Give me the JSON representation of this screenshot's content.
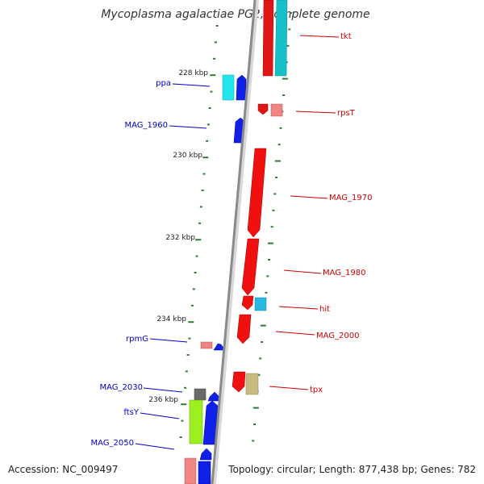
{
  "title": "Mycoplasma agalactiae PG2, complete genome",
  "footer": {
    "accession": "Accession: NC_009497",
    "summary": "Topology: circular; Length: 877,438 bp; Genes: 782"
  },
  "colors": {
    "forward_label": "#0000cc",
    "reverse_label": "#cc0000",
    "tick": "#2e7d32",
    "backbone": "#8a8a8a"
  },
  "scale": {
    "labels": [
      {
        "kbp": 228,
        "text": "228 kbp"
      },
      {
        "kbp": 230,
        "text": "230 kbp"
      },
      {
        "kbp": 232,
        "text": "232 kbp"
      },
      {
        "kbp": 234,
        "text": "234 kbp"
      },
      {
        "kbp": 236,
        "text": "236 kbp"
      }
    ]
  },
  "genes": [
    {
      "name": "tkt",
      "strand": "reverse"
    },
    {
      "name": "ppa",
      "strand": "forward"
    },
    {
      "name": "rpsT",
      "strand": "reverse"
    },
    {
      "name": "MAG_1960",
      "strand": "forward"
    },
    {
      "name": "MAG_1970",
      "strand": "reverse"
    },
    {
      "name": "MAG_1980",
      "strand": "reverse"
    },
    {
      "name": "hit",
      "strand": "reverse"
    },
    {
      "name": "rpmG",
      "strand": "forward"
    },
    {
      "name": "MAG_2000",
      "strand": "reverse"
    },
    {
      "name": "tpx",
      "strand": "reverse"
    },
    {
      "name": "MAG_2030",
      "strand": "forward"
    },
    {
      "name": "ftsY",
      "strand": "forward"
    },
    {
      "name": "MAG_2050",
      "strand": "forward"
    }
  ]
}
